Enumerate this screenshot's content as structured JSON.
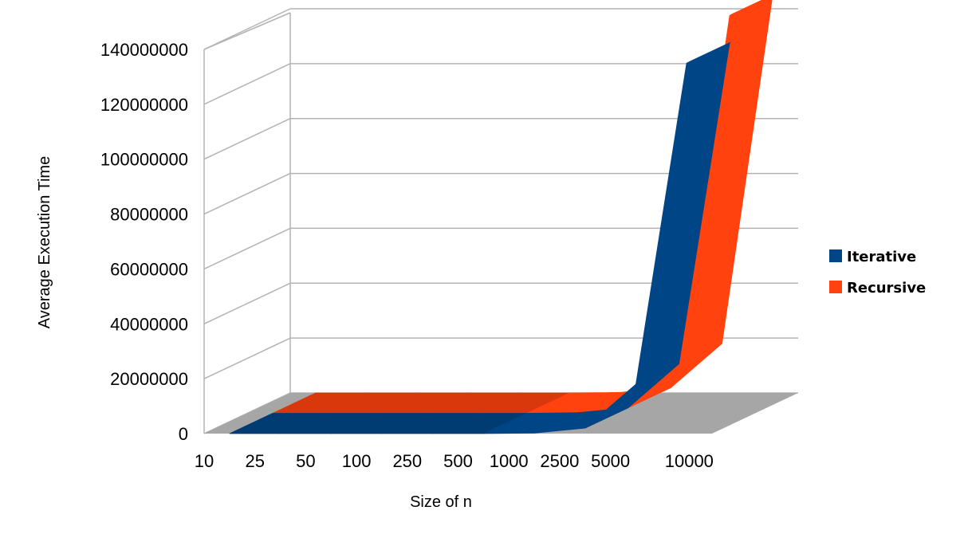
{
  "chart_data": {
    "type": "area",
    "title": "",
    "xlabel": "Size of n",
    "ylabel": "Average Execution Time",
    "categories": [
      "10",
      "25",
      "50",
      "100",
      "250",
      "500",
      "1000",
      "2500",
      "5000",
      "10000"
    ],
    "series": [
      {
        "name": "Iterative",
        "color": "#004586",
        "values": [
          0,
          0,
          0,
          0,
          0,
          0,
          200000,
          2000000,
          18000000,
          135000000
        ]
      },
      {
        "name": "Recursive",
        "color": "#ff420e",
        "values": [
          0,
          0,
          0,
          0,
          0,
          0,
          200000,
          2000000,
          18000000,
          145000000
        ]
      }
    ],
    "yticks": [
      "0",
      "20000000",
      "40000000",
      "60000000",
      "80000000",
      "100000000",
      "120000000",
      "140000000"
    ],
    "ylim": [
      0,
      140000000
    ],
    "grid": true,
    "legend_position": "right",
    "view": "3d"
  }
}
